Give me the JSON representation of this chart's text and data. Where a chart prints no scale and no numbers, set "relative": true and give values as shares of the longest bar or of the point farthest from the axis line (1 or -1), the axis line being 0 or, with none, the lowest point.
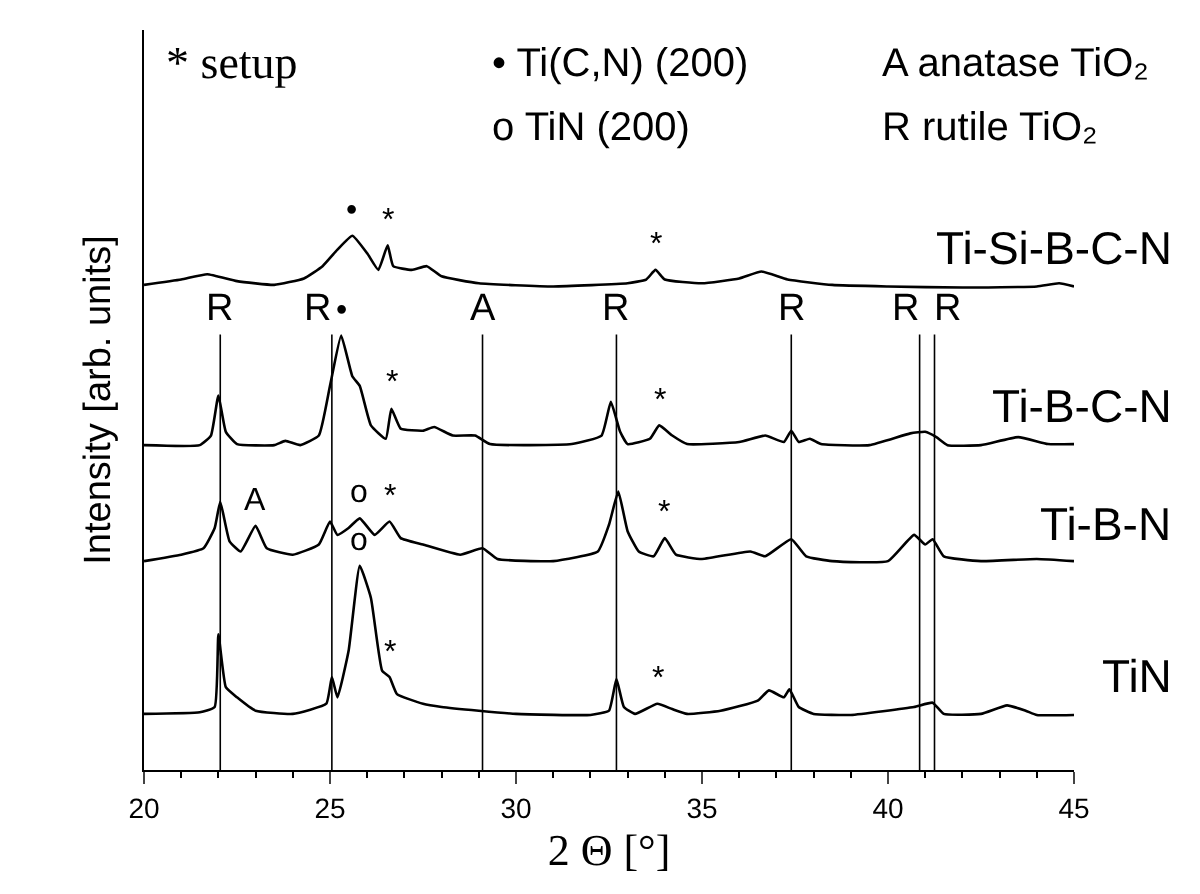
{
  "chart_data": {
    "type": "line",
    "relative": true,
    "xlabel": "2 Θ [°]",
    "ylabel": "Intensity [arb. units]",
    "xlim": [
      20,
      45
    ],
    "xticks": [
      20,
      25,
      30,
      35,
      40,
      45
    ],
    "legend": false,
    "marker": "none",
    "line_style": "solid",
    "series": [
      {
        "name": "Ti-Si-B-C-N",
        "color": "#000000",
        "x": [
          20,
          21,
          21.7,
          22.5,
          23.5,
          24.3,
          24.8,
          25.2,
          25.6,
          26.0,
          26.3,
          26.55,
          26.7,
          27.2,
          27.6,
          28,
          29,
          31,
          33,
          33.5,
          33.75,
          34.0,
          35,
          36.0,
          36.6,
          37.3,
          38.5,
          40,
          42,
          44,
          44.6,
          45
        ],
        "values": [
          0.908,
          0.918,
          0.928,
          0.915,
          0.908,
          0.92,
          0.943,
          0.974,
          1.0,
          0.967,
          0.936,
          0.982,
          0.943,
          0.936,
          0.943,
          0.924,
          0.911,
          0.905,
          0.911,
          0.918,
          0.936,
          0.918,
          0.911,
          0.92,
          0.933,
          0.918,
          0.908,
          0.905,
          0.903,
          0.905,
          0.911,
          0.905
        ]
      },
      {
        "name": "Ti-B-C-N",
        "color": "#000000",
        "x": [
          20,
          21.5,
          21.8,
          22.0,
          22.2,
          22.5,
          23.5,
          23.8,
          24.2,
          24.7,
          25.0,
          25.3,
          25.6,
          25.8,
          26.1,
          26.5,
          26.65,
          26.9,
          27.5,
          27.8,
          28.3,
          28.9,
          29.3,
          31.5,
          32.3,
          32.55,
          32.8,
          33.0,
          33.6,
          33.85,
          34.2,
          34.6,
          36,
          36.7,
          37.2,
          37.4,
          37.6,
          37.9,
          38.2,
          39.5,
          40.6,
          41.0,
          41.3,
          41.6,
          42.5,
          43.5,
          44.3,
          45
        ],
        "values": [
          0.608,
          0.608,
          0.626,
          0.701,
          0.633,
          0.61,
          0.608,
          0.616,
          0.608,
          0.626,
          0.719,
          0.813,
          0.737,
          0.719,
          0.645,
          0.62,
          0.676,
          0.639,
          0.635,
          0.642,
          0.626,
          0.626,
          0.61,
          0.61,
          0.626,
          0.689,
          0.633,
          0.61,
          0.62,
          0.645,
          0.626,
          0.61,
          0.614,
          0.626,
          0.614,
          0.635,
          0.614,
          0.62,
          0.61,
          0.608,
          0.63,
          0.633,
          0.623,
          0.608,
          0.608,
          0.623,
          0.61,
          0.61
        ]
      },
      {
        "name": "Ti-B-N",
        "color": "#000000",
        "x": [
          20,
          21,
          21.6,
          21.9,
          22.05,
          22.3,
          22.6,
          23.0,
          23.3,
          24,
          24.7,
          25.0,
          25.2,
          25.5,
          25.8,
          26.2,
          26.6,
          26.9,
          27.5,
          28.5,
          29.1,
          29.5,
          31,
          32.2,
          32.5,
          32.75,
          33,
          33.3,
          33.7,
          34.0,
          34.3,
          35,
          36.3,
          36.7,
          37.4,
          37.8,
          38.5,
          40,
          40.7,
          41.0,
          41.2,
          41.5,
          42.5,
          44,
          45
        ],
        "values": [
          0.391,
          0.403,
          0.415,
          0.453,
          0.502,
          0.428,
          0.409,
          0.457,
          0.415,
          0.403,
          0.422,
          0.465,
          0.44,
          0.453,
          0.471,
          0.44,
          0.465,
          0.434,
          0.422,
          0.403,
          0.415,
          0.395,
          0.391,
          0.409,
          0.459,
          0.521,
          0.447,
          0.409,
          0.4,
          0.434,
          0.403,
          0.395,
          0.409,
          0.4,
          0.432,
          0.4,
          0.391,
          0.391,
          0.44,
          0.422,
          0.432,
          0.4,
          0.391,
          0.395,
          0.391
        ]
      },
      {
        "name": "TiN",
        "color": "#000000",
        "x": [
          20,
          21.5,
          21.9,
          22.0,
          22.2,
          22.5,
          23,
          24,
          24.9,
          25.05,
          25.2,
          25.5,
          25.8,
          26.1,
          26.4,
          26.6,
          26.8,
          27.5,
          28,
          29,
          30,
          32,
          32.5,
          32.7,
          32.9,
          33.2,
          33.8,
          34.2,
          34.6,
          35.5,
          36.5,
          36.8,
          37.2,
          37.35,
          37.6,
          38,
          39,
          40.7,
          41.2,
          41.5,
          42.5,
          43.2,
          43.7,
          44,
          45
        ],
        "values": [
          0.105,
          0.108,
          0.118,
          0.254,
          0.155,
          0.136,
          0.111,
          0.105,
          0.124,
          0.174,
          0.136,
          0.223,
          0.382,
          0.322,
          0.186,
          0.174,
          0.142,
          0.124,
          0.118,
          0.111,
          0.105,
          0.103,
          0.111,
          0.17,
          0.118,
          0.105,
          0.124,
          0.114,
          0.105,
          0.111,
          0.13,
          0.149,
          0.136,
          0.151,
          0.118,
          0.105,
          0.103,
          0.118,
          0.126,
          0.105,
          0.105,
          0.121,
          0.111,
          0.103,
          0.103
        ]
      }
    ],
    "ref_lines": [
      {
        "axis": "x",
        "value": 22.05,
        "label": "R",
        "color": "#000000"
      },
      {
        "axis": "x",
        "value": 25.05,
        "label": "R",
        "color": "#000000"
      },
      {
        "axis": "x",
        "value": 29.1,
        "label": "A",
        "color": "#000000"
      },
      {
        "axis": "x",
        "value": 32.7,
        "label": "R",
        "color": "#000000"
      },
      {
        "axis": "x",
        "value": 37.4,
        "label": "R",
        "color": "#000000"
      },
      {
        "axis": "x",
        "value": 40.85,
        "label": "R",
        "color": "#000000"
      },
      {
        "axis": "x",
        "value": 41.25,
        "label": "R",
        "color": "#000000"
      }
    ],
    "annotations": [
      "* setup",
      "• Ti(C,N) (200)",
      "o TiN (200)",
      "A anatase TiO₂",
      "R rutile TiO₂",
      {
        "text": "•",
        "x": 25.6,
        "y": 1.0
      },
      {
        "text": "*",
        "x": 26.55,
        "y": 0.982
      },
      {
        "text": "*",
        "x": 33.75,
        "y": 0.936
      },
      {
        "text": "•",
        "x": 25.3,
        "y": 0.813
      },
      {
        "text": "*",
        "x": 26.65,
        "y": 0.676
      },
      {
        "text": "*",
        "x": 33.85,
        "y": 0.645
      },
      {
        "text": "A",
        "x": 23.0,
        "y": 0.457
      },
      {
        "text": "o",
        "x": 25.8,
        "y": 0.471
      },
      {
        "text": "*",
        "x": 26.6,
        "y": 0.465
      },
      {
        "text": "*",
        "x": 34.0,
        "y": 0.434
      },
      {
        "text": "o",
        "x": 25.8,
        "y": 0.382
      },
      {
        "text": "*",
        "x": 26.6,
        "y": 0.174
      },
      {
        "text": "*",
        "x": 33.8,
        "y": 0.124
      }
    ]
  }
}
